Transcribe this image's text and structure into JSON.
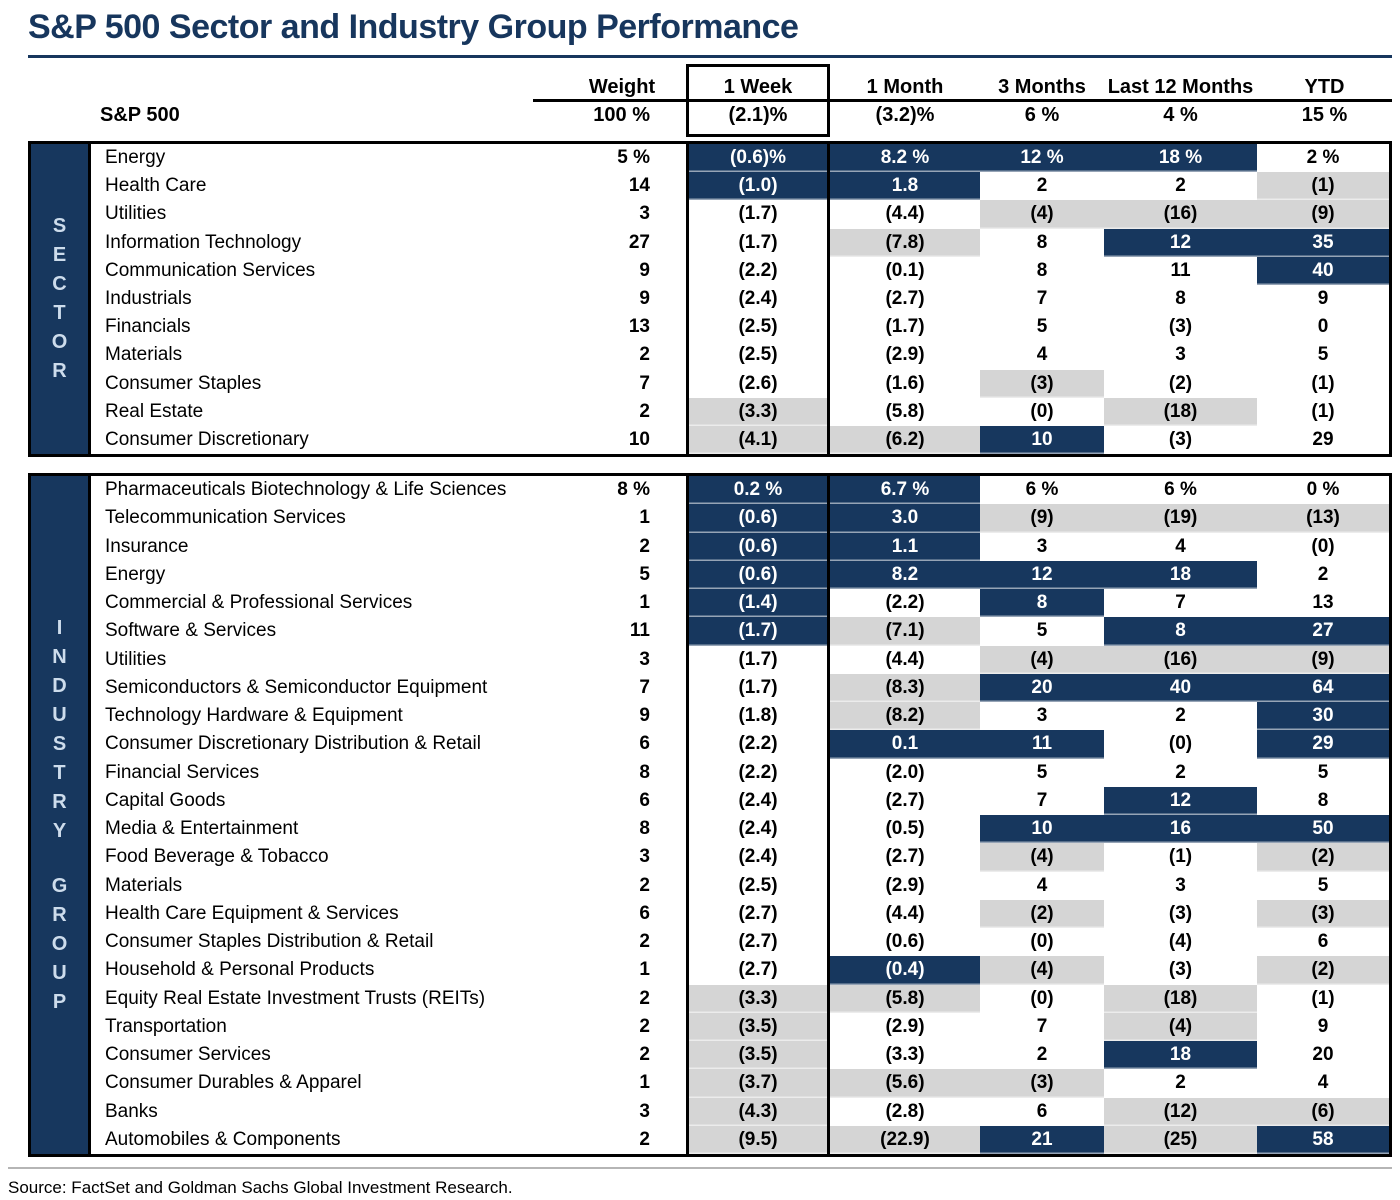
{
  "chart_data": {
    "type": "table",
    "title": "S&P 500 Sector and Industry Group Performance",
    "columns": [
      "Weight",
      "1 Week",
      "1 Month",
      "3 Months",
      "Last 12 Months",
      "YTD"
    ],
    "highlight_legend": {
      "n": "navy highlight",
      "g": "gray highlight",
      "w": "no highlight"
    },
    "sp500": {
      "label": "S&P 500",
      "weight": "100 %",
      "values": [
        "(2.1)%",
        "(3.2)%",
        "6 %",
        "4 %",
        "15 %"
      ]
    },
    "sections": [
      {
        "band_lines": [
          "SECTOR"
        ],
        "rows": [
          {
            "name": "Energy",
            "weight": "5 %",
            "cells": [
              [
                "(0.6)%",
                "n"
              ],
              [
                "8.2 %",
                "n"
              ],
              [
                "12 %",
                "n"
              ],
              [
                "18 %",
                "n"
              ],
              [
                "2 %",
                "w"
              ]
            ]
          },
          {
            "name": "Health Care",
            "weight": "14",
            "cells": [
              [
                "(1.0)",
                "n"
              ],
              [
                "1.8",
                "n"
              ],
              [
                "2",
                "w"
              ],
              [
                "2",
                "w"
              ],
              [
                "(1)",
                "g"
              ]
            ]
          },
          {
            "name": "Utilities",
            "weight": "3",
            "cells": [
              [
                "(1.7)",
                "w"
              ],
              [
                "(4.4)",
                "w"
              ],
              [
                "(4)",
                "g"
              ],
              [
                "(16)",
                "g"
              ],
              [
                "(9)",
                "g"
              ]
            ]
          },
          {
            "name": "Information Technology",
            "weight": "27",
            "cells": [
              [
                "(1.7)",
                "w"
              ],
              [
                "(7.8)",
                "g"
              ],
              [
                "8",
                "w"
              ],
              [
                "12",
                "n"
              ],
              [
                "35",
                "n"
              ]
            ]
          },
          {
            "name": "Communication Services",
            "weight": "9",
            "cells": [
              [
                "(2.2)",
                "w"
              ],
              [
                "(0.1)",
                "w"
              ],
              [
                "8",
                "w"
              ],
              [
                "11",
                "w"
              ],
              [
                "40",
                "n"
              ]
            ]
          },
          {
            "name": "Industrials",
            "weight": "9",
            "cells": [
              [
                "(2.4)",
                "w"
              ],
              [
                "(2.7)",
                "w"
              ],
              [
                "7",
                "w"
              ],
              [
                "8",
                "w"
              ],
              [
                "9",
                "w"
              ]
            ]
          },
          {
            "name": "Financials",
            "weight": "13",
            "cells": [
              [
                "(2.5)",
                "w"
              ],
              [
                "(1.7)",
                "w"
              ],
              [
                "5",
                "w"
              ],
              [
                "(3)",
                "w"
              ],
              [
                "0",
                "w"
              ]
            ]
          },
          {
            "name": "Materials",
            "weight": "2",
            "cells": [
              [
                "(2.5)",
                "w"
              ],
              [
                "(2.9)",
                "w"
              ],
              [
                "4",
                "w"
              ],
              [
                "3",
                "w"
              ],
              [
                "5",
                "w"
              ]
            ]
          },
          {
            "name": "Consumer Staples",
            "weight": "7",
            "cells": [
              [
                "(2.6)",
                "w"
              ],
              [
                "(1.6)",
                "w"
              ],
              [
                "(3)",
                "g"
              ],
              [
                "(2)",
                "w"
              ],
              [
                "(1)",
                "w"
              ]
            ]
          },
          {
            "name": "Real Estate",
            "weight": "2",
            "cells": [
              [
                "(3.3)",
                "g"
              ],
              [
                "(5.8)",
                "w"
              ],
              [
                "(0)",
                "w"
              ],
              [
                "(18)",
                "g"
              ],
              [
                "(1)",
                "w"
              ]
            ]
          },
          {
            "name": "Consumer Discretionary",
            "weight": "10",
            "cells": [
              [
                "(4.1)",
                "g"
              ],
              [
                "(6.2)",
                "g"
              ],
              [
                "10",
                "n"
              ],
              [
                "(3)",
                "w"
              ],
              [
                "29",
                "w"
              ]
            ]
          }
        ]
      },
      {
        "band_lines": [
          "INDUSTRY",
          "GROUP"
        ],
        "rows": [
          {
            "name": "Pharmaceuticals Biotechnology & Life Sciences",
            "weight": "8 %",
            "cells": [
              [
                "0.2 %",
                "n"
              ],
              [
                "6.7 %",
                "n"
              ],
              [
                "6 %",
                "w"
              ],
              [
                "6 %",
                "w"
              ],
              [
                "0 %",
                "w"
              ]
            ]
          },
          {
            "name": "Telecommunication Services",
            "weight": "1",
            "cells": [
              [
                "(0.6)",
                "n"
              ],
              [
                "3.0",
                "n"
              ],
              [
                "(9)",
                "g"
              ],
              [
                "(19)",
                "g"
              ],
              [
                "(13)",
                "g"
              ]
            ]
          },
          {
            "name": "Insurance",
            "weight": "2",
            "cells": [
              [
                "(0.6)",
                "n"
              ],
              [
                "1.1",
                "n"
              ],
              [
                "3",
                "w"
              ],
              [
                "4",
                "w"
              ],
              [
                "(0)",
                "w"
              ]
            ]
          },
          {
            "name": "Energy",
            "weight": "5",
            "cells": [
              [
                "(0.6)",
                "n"
              ],
              [
                "8.2",
                "n"
              ],
              [
                "12",
                "n"
              ],
              [
                "18",
                "n"
              ],
              [
                "2",
                "w"
              ]
            ]
          },
          {
            "name": "Commercial & Professional Services",
            "weight": "1",
            "cells": [
              [
                "(1.4)",
                "n"
              ],
              [
                "(2.2)",
                "w"
              ],
              [
                "8",
                "n"
              ],
              [
                "7",
                "w"
              ],
              [
                "13",
                "w"
              ]
            ]
          },
          {
            "name": "Software & Services",
            "weight": "11",
            "cells": [
              [
                "(1.7)",
                "n"
              ],
              [
                "(7.1)",
                "g"
              ],
              [
                "5",
                "w"
              ],
              [
                "8",
                "n"
              ],
              [
                "27",
                "n"
              ]
            ]
          },
          {
            "name": "Utilities",
            "weight": "3",
            "cells": [
              [
                "(1.7)",
                "w"
              ],
              [
                "(4.4)",
                "w"
              ],
              [
                "(4)",
                "g"
              ],
              [
                "(16)",
                "g"
              ],
              [
                "(9)",
                "g"
              ]
            ]
          },
          {
            "name": "Semiconductors & Semiconductor Equipment",
            "weight": "7",
            "cells": [
              [
                "(1.7)",
                "w"
              ],
              [
                "(8.3)",
                "g"
              ],
              [
                "20",
                "n"
              ],
              [
                "40",
                "n"
              ],
              [
                "64",
                "n"
              ]
            ]
          },
          {
            "name": "Technology Hardware & Equipment",
            "weight": "9",
            "cells": [
              [
                "(1.8)",
                "w"
              ],
              [
                "(8.2)",
                "g"
              ],
              [
                "3",
                "w"
              ],
              [
                "2",
                "w"
              ],
              [
                "30",
                "n"
              ]
            ]
          },
          {
            "name": "Consumer Discretionary Distribution & Retail",
            "weight": "6",
            "cells": [
              [
                "(2.2)",
                "w"
              ],
              [
                "0.1",
                "n"
              ],
              [
                "11",
                "n"
              ],
              [
                "(0)",
                "w"
              ],
              [
                "29",
                "n"
              ]
            ]
          },
          {
            "name": "Financial Services",
            "weight": "8",
            "cells": [
              [
                "(2.2)",
                "w"
              ],
              [
                "(2.0)",
                "w"
              ],
              [
                "5",
                "w"
              ],
              [
                "2",
                "w"
              ],
              [
                "5",
                "w"
              ]
            ]
          },
          {
            "name": "Capital Goods",
            "weight": "6",
            "cells": [
              [
                "(2.4)",
                "w"
              ],
              [
                "(2.7)",
                "w"
              ],
              [
                "7",
                "w"
              ],
              [
                "12",
                "n"
              ],
              [
                "8",
                "w"
              ]
            ]
          },
          {
            "name": "Media & Entertainment",
            "weight": "8",
            "cells": [
              [
                "(2.4)",
                "w"
              ],
              [
                "(0.5)",
                "w"
              ],
              [
                "10",
                "n"
              ],
              [
                "16",
                "n"
              ],
              [
                "50",
                "n"
              ]
            ]
          },
          {
            "name": "Food Beverage & Tobacco",
            "weight": "3",
            "cells": [
              [
                "(2.4)",
                "w"
              ],
              [
                "(2.7)",
                "w"
              ],
              [
                "(4)",
                "g"
              ],
              [
                "(1)",
                "w"
              ],
              [
                "(2)",
                "g"
              ]
            ]
          },
          {
            "name": "Materials",
            "weight": "2",
            "cells": [
              [
                "(2.5)",
                "w"
              ],
              [
                "(2.9)",
                "w"
              ],
              [
                "4",
                "w"
              ],
              [
                "3",
                "w"
              ],
              [
                "5",
                "w"
              ]
            ]
          },
          {
            "name": "Health Care Equipment & Services",
            "weight": "6",
            "cells": [
              [
                "(2.7)",
                "w"
              ],
              [
                "(4.4)",
                "w"
              ],
              [
                "(2)",
                "g"
              ],
              [
                "(3)",
                "w"
              ],
              [
                "(3)",
                "g"
              ]
            ]
          },
          {
            "name": "Consumer Staples Distribution & Retail",
            "weight": "2",
            "cells": [
              [
                "(2.7)",
                "w"
              ],
              [
                "(0.6)",
                "w"
              ],
              [
                "(0)",
                "w"
              ],
              [
                "(4)",
                "w"
              ],
              [
                "6",
                "w"
              ]
            ]
          },
          {
            "name": "Household & Personal Products",
            "weight": "1",
            "cells": [
              [
                "(2.7)",
                "w"
              ],
              [
                "(0.4)",
                "n"
              ],
              [
                "(4)",
                "g"
              ],
              [
                "(3)",
                "w"
              ],
              [
                "(2)",
                "g"
              ]
            ]
          },
          {
            "name": "Equity Real Estate Investment Trusts (REITs)",
            "weight": "2",
            "cells": [
              [
                "(3.3)",
                "g"
              ],
              [
                "(5.8)",
                "g"
              ],
              [
                "(0)",
                "w"
              ],
              [
                "(18)",
                "g"
              ],
              [
                "(1)",
                "w"
              ]
            ]
          },
          {
            "name": "Transportation",
            "weight": "2",
            "cells": [
              [
                "(3.5)",
                "g"
              ],
              [
                "(2.9)",
                "w"
              ],
              [
                "7",
                "w"
              ],
              [
                "(4)",
                "g"
              ],
              [
                "9",
                "w"
              ]
            ]
          },
          {
            "name": "Consumer Services",
            "weight": "2",
            "cells": [
              [
                "(3.5)",
                "g"
              ],
              [
                "(3.3)",
                "w"
              ],
              [
                "2",
                "w"
              ],
              [
                "18",
                "n"
              ],
              [
                "20",
                "w"
              ]
            ]
          },
          {
            "name": "Consumer Durables & Apparel",
            "weight": "1",
            "cells": [
              [
                "(3.7)",
                "g"
              ],
              [
                "(5.6)",
                "g"
              ],
              [
                "(3)",
                "g"
              ],
              [
                "2",
                "w"
              ],
              [
                "4",
                "w"
              ]
            ]
          },
          {
            "name": "Banks",
            "weight": "3",
            "cells": [
              [
                "(4.3)",
                "g"
              ],
              [
                "(2.8)",
                "w"
              ],
              [
                "6",
                "w"
              ],
              [
                "(12)",
                "g"
              ],
              [
                "(6)",
                "g"
              ]
            ]
          },
          {
            "name": "Automobiles & Components",
            "weight": "2",
            "cells": [
              [
                "(9.5)",
                "g"
              ],
              [
                "(22.9)",
                "g"
              ],
              [
                "21",
                "n"
              ],
              [
                "(25)",
                "g"
              ],
              [
                "58",
                "n"
              ]
            ]
          }
        ]
      }
    ],
    "source": "Source: FactSet and Goldman Sachs Global Investment Research.",
    "colors": {
      "navy": "#17375E",
      "gray": "#D5D5D5",
      "title_navy": "#17365D",
      "border": "#000000",
      "band_letter": "#CDDCEC"
    }
  }
}
